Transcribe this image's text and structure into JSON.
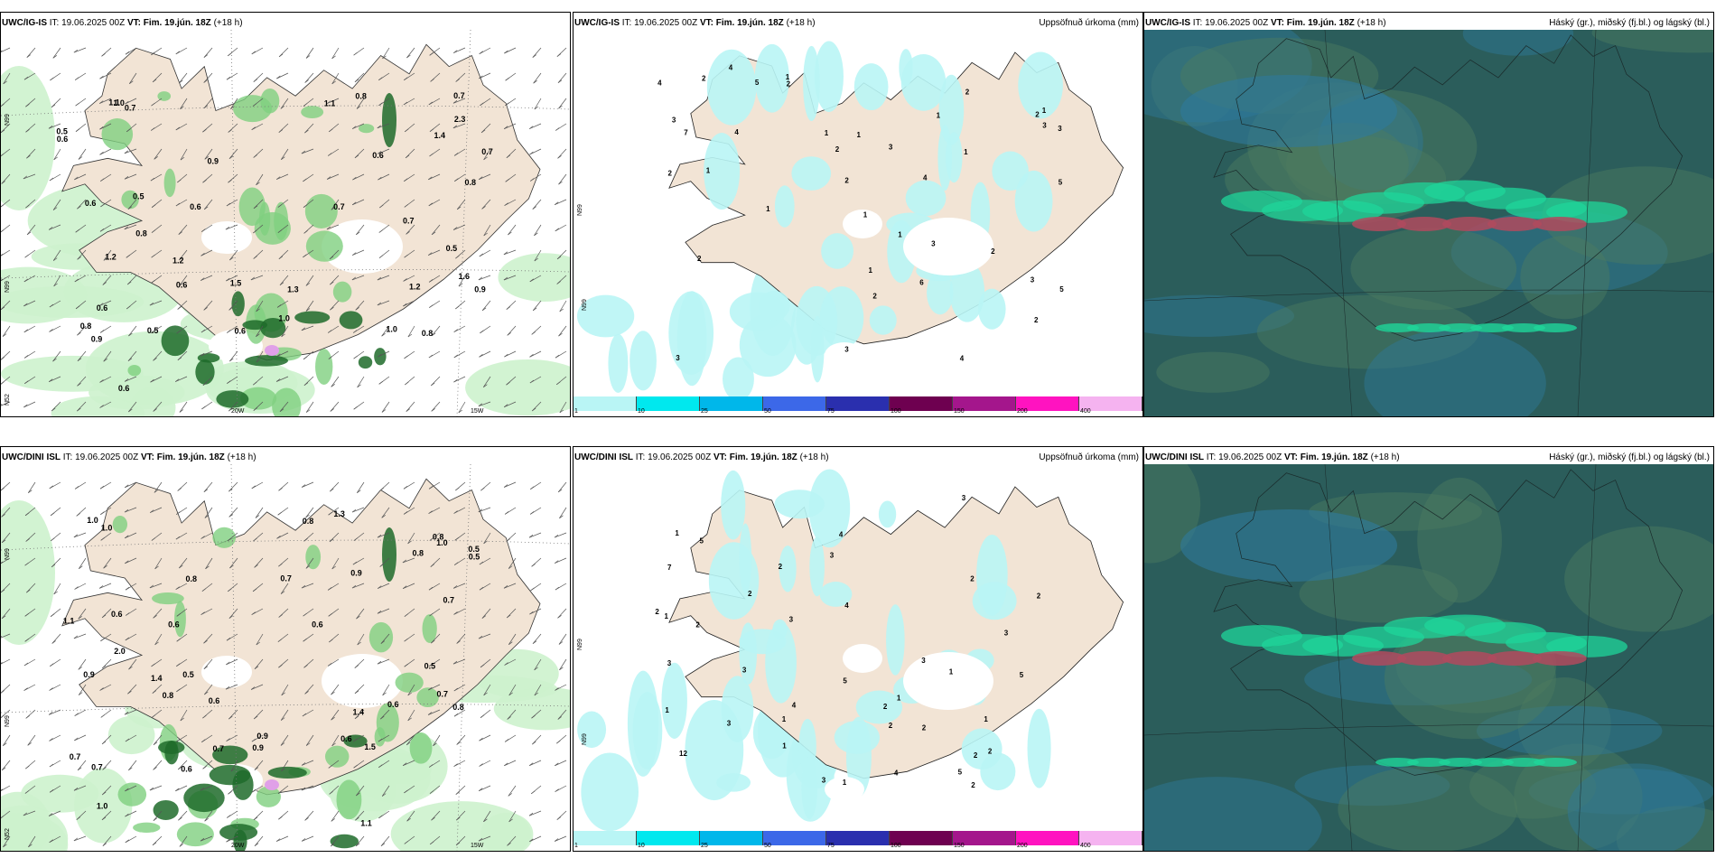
{
  "panels": [
    {
      "id": "top-left",
      "model": "UWC/IG-IS",
      "it_text": "IT: 19.06.2025 00Z",
      "vt_label": "VT:",
      "vt_value": "Fim. 19.jún. 18Z",
      "lead": "(+18 h)",
      "right_title": "",
      "lat_labels": [
        "N99",
        "N99",
        "N52"
      ],
      "lon_labels": [
        "20W",
        "15W"
      ],
      "values": [
        "0.7",
        "0.8",
        "0.6",
        "0.7",
        "0.5",
        "1.0",
        "0.8",
        "0.7",
        "1.3",
        "0.6",
        "0.7",
        "1.2",
        "0.5",
        "1.1",
        "0.6",
        "0.5",
        "1.0",
        "0.9",
        "1.1",
        "0.5",
        "1.2",
        "0.6",
        "0.8",
        "1.5",
        "1.4",
        "0.6",
        "0.9",
        "0.6",
        "1.2",
        "0.7",
        "2.3",
        "0.8",
        "0.6",
        "1.0",
        "0.8",
        "0.6",
        "1.6",
        "0.9"
      ]
    },
    {
      "id": "top-middle",
      "model": "UWC/IG-IS",
      "it_text": "IT: 19.06.2025 00Z",
      "vt_label": "VT:",
      "vt_value": "Fim. 19.jún. 18Z",
      "lead": "(+18 h)",
      "right_title": "Uppsöfnuð úrkoma (mm)",
      "lat_labels": [
        "N99",
        "N99"
      ],
      "values": [
        "1",
        "2",
        "1",
        "2",
        "1",
        "1",
        "3",
        "2",
        "4",
        "5",
        "3",
        "2",
        "1",
        "3",
        "5",
        "2",
        "3",
        "4",
        "2",
        "1",
        "4",
        "3",
        "2",
        "3",
        "1",
        "2",
        "1",
        "1",
        "2",
        "6",
        "3",
        "4",
        "2",
        "1",
        "7",
        "5",
        "4",
        "3",
        "2",
        "1"
      ]
    },
    {
      "id": "top-right",
      "model": "UWC/IG-IS",
      "it_text": "IT: 19.06.2025 00Z",
      "vt_label": "VT:",
      "vt_value": "Fim. 19.jún. 18Z",
      "lead": "(+18 h)",
      "right_title": "Háský (gr.), miðský (fj.bl.) og lágský (bl.)"
    },
    {
      "id": "bottom-left",
      "model": "UWC/DINI ISL",
      "it_text": "IT: 19.06.2025 00Z",
      "vt_label": "VT:",
      "vt_value": "Fim. 19.jún. 18Z",
      "lead": "(+18 h)",
      "right_title": "",
      "lat_labels": [
        "N99",
        "N99",
        "N52"
      ],
      "lon_labels": [
        "20W",
        "15W"
      ],
      "values": [
        "0.6",
        "0.5",
        "0.8",
        "0.6",
        "0.5",
        "0.9",
        "0.8",
        "1.0",
        "0.6",
        "1.4",
        "0.5",
        "0.7",
        "0.6",
        "0.8",
        "1.0",
        "0.7",
        "1.1",
        "0.9",
        "0.6",
        "0.8",
        "2.0",
        "0.7",
        "1.5",
        "1.3",
        "0.9",
        "0.7",
        "0.8",
        "1.0",
        "1.1",
        "0.5",
        "0.6",
        "0.7",
        "1.0",
        "0.8",
        "0.6",
        "1.4",
        "0.7",
        "0.9"
      ]
    },
    {
      "id": "bottom-middle",
      "model": "UWC/DINI ISL",
      "it_text": "IT: 19.06.2025 00Z",
      "vt_label": "VT:",
      "vt_value": "Fim. 19.jún. 18Z",
      "lead": "(+18 h)",
      "right_title": "Uppsöfnuð úrkoma (mm)",
      "lat_labels": [
        "N99",
        "N99"
      ],
      "values": [
        "3",
        "2",
        "1",
        "2",
        "1",
        "1",
        "2",
        "3",
        "4",
        "5",
        "3",
        "2",
        "1",
        "3",
        "2",
        "4",
        "1",
        "2",
        "3",
        "5",
        "2",
        "12",
        "7",
        "5",
        "4",
        "3",
        "2",
        "1",
        "3",
        "2",
        "1",
        "2",
        "4",
        "3",
        "2",
        "1",
        "5",
        "3",
        "2",
        "1"
      ]
    },
    {
      "id": "bottom-right",
      "model": "UWC/DINI ISL",
      "it_text": "IT: 19.06.2025 00Z",
      "vt_label": "VT:",
      "vt_value": "Fim. 19.jún. 18Z",
      "lead": "(+18 h)",
      "right_title": "Háský (gr.), miðský (fj.bl.) og lágský (bl.)"
    }
  ],
  "legend": {
    "ticks": [
      "1",
      "10",
      "25",
      "50",
      "75",
      "100",
      "150",
      "200",
      "400"
    ],
    "colors": [
      "#b9f5f5",
      "#00e8ee",
      "#00b7ea",
      "#3c68e8",
      "#2a2fae",
      "#6e0050",
      "#a4168c",
      "#ff13c0",
      "#f5b3f0"
    ]
  },
  "colors": {
    "land": "#f2e4d5",
    "precip_light": "#cdf2cd",
    "precip_mid": "#7fcf7f",
    "precip_dark": "#1e6b2a",
    "precip_pink": "#e0a0e8",
    "accum": "#b9f5f5",
    "cloud_base": "#2b5d5b",
    "cloud_blue": "#2f7a9c",
    "cloud_green": "#1fd69a",
    "cloud_red": "#b04a5e"
  }
}
